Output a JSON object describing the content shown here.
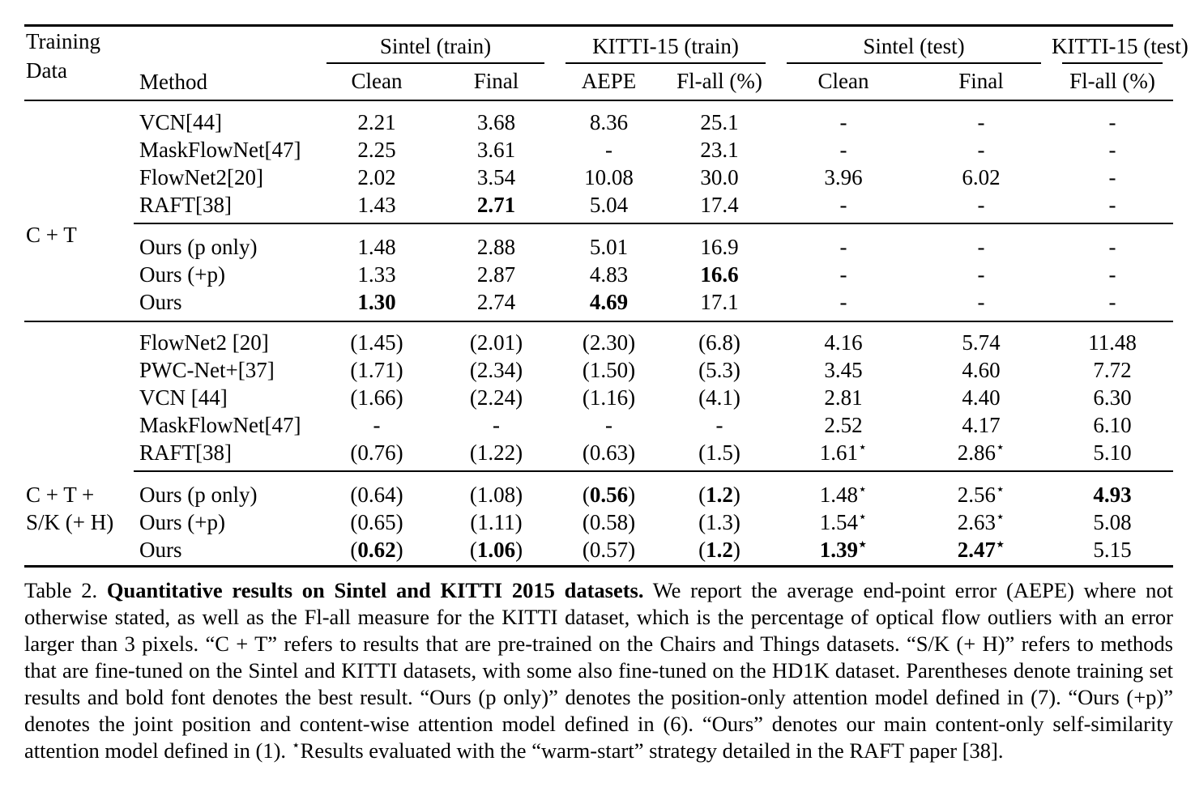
{
  "table": {
    "star_symbol": "⋆",
    "row_header": {
      "line1": "Training",
      "line2": "Data",
      "method": "Method"
    },
    "groups": [
      {
        "label": "Sintel (train)"
      },
      {
        "label": "KITTI-15 (train)"
      },
      {
        "label": "Sintel (test)"
      },
      {
        "label": "KITTI-15 (test)"
      }
    ],
    "sub_headers": [
      "Clean",
      "Final",
      "AEPE",
      "Fl-all (%)",
      "Clean",
      "Final",
      "Fl-all (%)"
    ],
    "sections": [
      {
        "training_data_lines": [
          "C + T"
        ],
        "blocks": [
          [
            {
              "method": "VCN[44]",
              "values": [
                {
                  "v": "2.21"
                },
                {
                  "v": "3.68"
                },
                {
                  "v": "8.36"
                },
                {
                  "v": "25.1"
                },
                {
                  "v": "-"
                },
                {
                  "v": "-"
                },
                {
                  "v": "-"
                }
              ]
            },
            {
              "method": "MaskFlowNet[47]",
              "values": [
                {
                  "v": "2.25"
                },
                {
                  "v": "3.61"
                },
                {
                  "v": "-"
                },
                {
                  "v": "23.1"
                },
                {
                  "v": "-"
                },
                {
                  "v": "-"
                },
                {
                  "v": "-"
                }
              ]
            },
            {
              "method": "FlowNet2[20]",
              "values": [
                {
                  "v": "2.02"
                },
                {
                  "v": "3.54"
                },
                {
                  "v": "10.08"
                },
                {
                  "v": "30.0"
                },
                {
                  "v": "3.96"
                },
                {
                  "v": "6.02"
                },
                {
                  "v": "-"
                }
              ]
            },
            {
              "method": "RAFT[38]",
              "values": [
                {
                  "v": "1.43"
                },
                {
                  "v": "2.71",
                  "b": 1
                },
                {
                  "v": "5.04"
                },
                {
                  "v": "17.4"
                },
                {
                  "v": "-"
                },
                {
                  "v": "-"
                },
                {
                  "v": "-"
                }
              ]
            }
          ],
          [
            {
              "method": "Ours (p only)",
              "values": [
                {
                  "v": "1.48"
                },
                {
                  "v": "2.88"
                },
                {
                  "v": "5.01"
                },
                {
                  "v": "16.9"
                },
                {
                  "v": "-"
                },
                {
                  "v": "-"
                },
                {
                  "v": "-"
                }
              ]
            },
            {
              "method": "Ours (+p)",
              "values": [
                {
                  "v": "1.33"
                },
                {
                  "v": "2.87"
                },
                {
                  "v": "4.83"
                },
                {
                  "v": "16.6",
                  "b": 1
                },
                {
                  "v": "-"
                },
                {
                  "v": "-"
                },
                {
                  "v": "-"
                }
              ]
            },
            {
              "method": "Ours",
              "values": [
                {
                  "v": "1.30",
                  "b": 1
                },
                {
                  "v": "2.74"
                },
                {
                  "v": "4.69",
                  "b": 1
                },
                {
                  "v": "17.1"
                },
                {
                  "v": "-"
                },
                {
                  "v": "-"
                },
                {
                  "v": "-"
                }
              ]
            }
          ]
        ]
      },
      {
        "training_data_lines": [
          "C + T +",
          "S/K (+ H)"
        ],
        "blocks": [
          [
            {
              "method": "FlowNet2 [20]",
              "values": [
                {
                  "v": "1.45",
                  "p": 1
                },
                {
                  "v": "2.01",
                  "p": 1
                },
                {
                  "v": "2.30",
                  "p": 1
                },
                {
                  "v": "6.8",
                  "p": 1
                },
                {
                  "v": "4.16"
                },
                {
                  "v": "5.74"
                },
                {
                  "v": "11.48"
                }
              ]
            },
            {
              "method": "PWC-Net+[37]",
              "values": [
                {
                  "v": "1.71",
                  "p": 1
                },
                {
                  "v": "2.34",
                  "p": 1
                },
                {
                  "v": "1.50",
                  "p": 1
                },
                {
                  "v": "5.3",
                  "p": 1
                },
                {
                  "v": "3.45"
                },
                {
                  "v": "4.60"
                },
                {
                  "v": "7.72"
                }
              ]
            },
            {
              "method": "VCN [44]",
              "values": [
                {
                  "v": "1.66",
                  "p": 1
                },
                {
                  "v": "2.24",
                  "p": 1
                },
                {
                  "v": "1.16",
                  "p": 1
                },
                {
                  "v": "4.1",
                  "p": 1
                },
                {
                  "v": "2.81"
                },
                {
                  "v": "4.40"
                },
                {
                  "v": "6.30"
                }
              ]
            },
            {
              "method": "MaskFlowNet[47]",
              "values": [
                {
                  "v": "-"
                },
                {
                  "v": "-"
                },
                {
                  "v": "-"
                },
                {
                  "v": "-"
                },
                {
                  "v": "2.52"
                },
                {
                  "v": "4.17"
                },
                {
                  "v": "6.10"
                }
              ]
            },
            {
              "method": "RAFT[38]",
              "values": [
                {
                  "v": "0.76",
                  "p": 1
                },
                {
                  "v": "1.22",
                  "p": 1
                },
                {
                  "v": "0.63",
                  "p": 1
                },
                {
                  "v": "1.5",
                  "p": 1
                },
                {
                  "v": "1.61",
                  "s": 1
                },
                {
                  "v": "2.86",
                  "s": 1
                },
                {
                  "v": "5.10"
                }
              ]
            }
          ],
          [
            {
              "method": "Ours (p only)",
              "values": [
                {
                  "v": "0.64",
                  "p": 1
                },
                {
                  "v": "1.08",
                  "p": 1
                },
                {
                  "v": "0.56",
                  "p": 1,
                  "b": 1
                },
                {
                  "v": "1.2",
                  "p": 1,
                  "b": 1
                },
                {
                  "v": "1.48",
                  "s": 1
                },
                {
                  "v": "2.56",
                  "s": 1
                },
                {
                  "v": "4.93",
                  "b": 1
                }
              ]
            },
            {
              "method": "Ours (+p)",
              "values": [
                {
                  "v": "0.65",
                  "p": 1
                },
                {
                  "v": "1.11",
                  "p": 1
                },
                {
                  "v": "0.58",
                  "p": 1
                },
                {
                  "v": "1.3",
                  "p": 1
                },
                {
                  "v": "1.54",
                  "s": 1
                },
                {
                  "v": "2.63",
                  "s": 1
                },
                {
                  "v": "5.08"
                }
              ]
            },
            {
              "method": "Ours",
              "values": [
                {
                  "v": "0.62",
                  "p": 1,
                  "b": 1
                },
                {
                  "v": "1.06",
                  "p": 1,
                  "b": 1
                },
                {
                  "v": "0.57",
                  "p": 1
                },
                {
                  "v": "1.2",
                  "p": 1,
                  "b": 1
                },
                {
                  "v": "1.39",
                  "s": 1,
                  "b": 1
                },
                {
                  "v": "2.47",
                  "s": 1,
                  "b": 1
                },
                {
                  "v": "5.15"
                }
              ]
            }
          ]
        ]
      }
    ]
  },
  "caption": {
    "prefix": "Table 2. ",
    "bold_lead": "Quantitative results on Sintel and KITTI 2015 datasets.",
    "body": " We report the average end-point error (AEPE) where not otherwise stated, as well as the Fl-all measure for the KITTI dataset, which is the percentage of optical flow outliers with an error larger than 3 pixels. “C + T” refers to results that are pre-trained on the Chairs and Things datasets. “S/K (+ H)” refers to methods that are fine-tuned on the Sintel and KITTI datasets, with some also fine-tuned on the HD1K dataset. Parentheses denote training set results and bold font denotes the best result. “Ours (p only)” denotes the position-only attention model defined in (7). “Ours (+p)” denotes the joint position and content-wise attention model defined in (6). “Ours” denotes our main content-only self-similarity attention model defined in (1). ",
    "star_note": "Results evaluated with the “warm-start” strategy detailed in the RAFT paper [38]."
  }
}
